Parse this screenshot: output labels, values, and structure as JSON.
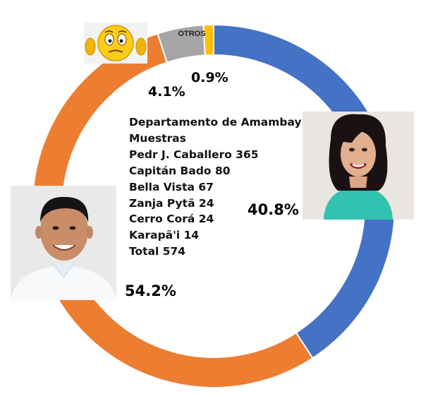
{
  "chart_data": {
    "type": "pie",
    "slices": [
      {
        "label": "",
        "value": 40.8,
        "display": "40.8%",
        "color": "#4472C4"
      },
      {
        "label": "",
        "value": 54.2,
        "display": "54.2%",
        "color": "#ED7D31"
      },
      {
        "label": "",
        "value": 4.1,
        "display": "4.1%",
        "color": "#A5A5A5"
      },
      {
        "label": "OTROS",
        "value": 0.9,
        "display": "0.9%",
        "color": "#FFC000"
      }
    ],
    "annotation_lines": [
      "Departamento de Amambay",
      "Muestras",
      "Pedr J. Caballero 365",
      "Capitán Bado 80",
      "Bella Vista 67",
      "Zanja Pytã 24",
      "Cerro Corá 24",
      "Karapã'i 14",
      "Total 574"
    ]
  }
}
